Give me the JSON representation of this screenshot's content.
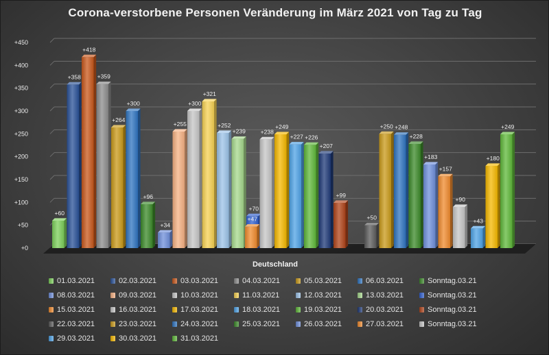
{
  "chart_data": {
    "type": "bar",
    "title": "Corona-verstorbene Personen Veränderung  im März 2021 von Tag zu Tag",
    "xlabel": "Deutschland",
    "ylabel": "",
    "ylim": [
      0,
      450
    ],
    "yticks": [
      "+0",
      "+50",
      "+100",
      "+150",
      "+200",
      "+250",
      "+300",
      "+350",
      "+400",
      "+450"
    ],
    "grid": true,
    "legend_position": "bottom",
    "colors": {
      "green_light": "#7ccf5a",
      "navy": "#2a5298",
      "orange_dark": "#c8581c",
      "gray": "#8c8c8c",
      "gold": "#c99a1a",
      "blue": "#2f74c0",
      "green_dark": "#3c8a2a",
      "periwinkle": "#6f8fdb",
      "peach": "#f6b183",
      "light_gray": "#c6c6c6",
      "yellow": "#f7d253",
      "light_blue": "#9cc3e8",
      "pale_green": "#a6d88c",
      "royal_blue": "#2f5fcf",
      "orange": "#f08b2e",
      "amber": "#f5b800",
      "sky_blue": "#4fa3e6",
      "green": "#5fb83a",
      "dark_navy": "#1f3a78",
      "rust": "#b0441a",
      "dark_gray": "#5c5c5c"
    },
    "series": [
      {
        "name": "01.03.2021",
        "value": 60,
        "label": "+60",
        "color": "green_light"
      },
      {
        "name": "02.03.2021",
        "value": 358,
        "label": "+358",
        "color": "navy"
      },
      {
        "name": "03.03.2021",
        "value": 418,
        "label": "+418",
        "color": "orange_dark"
      },
      {
        "name": "04.03.2021",
        "value": 359,
        "label": "+359",
        "color": "gray"
      },
      {
        "name": "05.03.2021",
        "value": 264,
        "label": "+264",
        "color": "gold"
      },
      {
        "name": "06.03.2021",
        "value": 300,
        "label": "+300",
        "color": "blue"
      },
      {
        "name": "Sonntag.03.21",
        "value": 96,
        "label": "+96",
        "color": "green_dark"
      },
      {
        "name": "08.03.2021",
        "value": 34,
        "label": "+34",
        "color": "periwinkle"
      },
      {
        "name": "09.03.2021",
        "value": 255,
        "label": "+255",
        "color": "peach"
      },
      {
        "name": "10.03.2021",
        "value": 300,
        "label": "+300",
        "color": "light_gray"
      },
      {
        "name": "11.03.2021",
        "value": 321,
        "label": "+321",
        "color": "yellow"
      },
      {
        "name": "12.03.2021",
        "value": 252,
        "label": "+252",
        "color": "light_blue"
      },
      {
        "name": "13.03.2021",
        "value": 239,
        "label": "+239",
        "color": "pale_green"
      },
      {
        "name": "Sonntag.03.21",
        "value": 70,
        "label": "+70",
        "color": "royal_blue"
      },
      {
        "name": "15.03.2021",
        "value": 47,
        "label": "+47",
        "color": "orange"
      },
      {
        "name": "16.03.2021",
        "value": 238,
        "label": "+238",
        "color": "light_gray"
      },
      {
        "name": "17.03.2021",
        "value": 249,
        "label": "+249",
        "color": "amber"
      },
      {
        "name": "18.03.2021",
        "value": 227,
        "label": "+227",
        "color": "sky_blue"
      },
      {
        "name": "19.03.2021",
        "value": 226,
        "label": "+226",
        "color": "green"
      },
      {
        "name": "20.03.2021",
        "value": 207,
        "label": "+207",
        "color": "dark_navy"
      },
      {
        "name": "Sonntag.03.21",
        "value": 99,
        "label": "+99",
        "color": "rust"
      },
      {
        "name": "22.03.2021",
        "value": 50,
        "label": "+50",
        "color": "dark_gray"
      },
      {
        "name": "23.03.2021",
        "value": 250,
        "label": "+250",
        "color": "gold"
      },
      {
        "name": "24.03.2021",
        "value": 248,
        "label": "+248",
        "color": "blue"
      },
      {
        "name": "25.03.2021",
        "value": 228,
        "label": "+228",
        "color": "green_dark"
      },
      {
        "name": "26.03.2021",
        "value": 183,
        "label": "+183",
        "color": "periwinkle"
      },
      {
        "name": "27.03.2021",
        "value": 157,
        "label": "+157",
        "color": "orange"
      },
      {
        "name": "Sonntag.03.21",
        "value": 90,
        "label": "+90",
        "color": "light_gray"
      },
      {
        "name": "29.03.2021",
        "value": 43,
        "label": "+43",
        "color": "sky_blue"
      },
      {
        "name": "30.03.2021",
        "value": 180,
        "label": "+180",
        "color": "amber"
      },
      {
        "name": "31.03.2021",
        "value": 249,
        "label": "+249",
        "color": "green"
      }
    ]
  }
}
